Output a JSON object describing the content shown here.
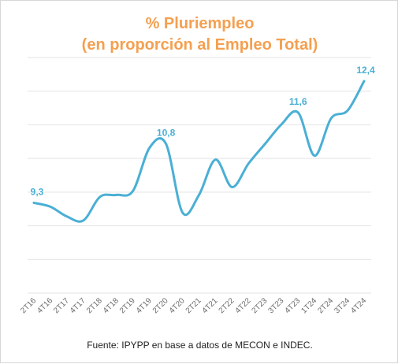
{
  "chart_data": {
    "type": "line",
    "title": "% Pluriempleo",
    "subtitle": "(en proporción al Empleo Total)",
    "source": "Fuente: IPYPP en base a datos de MECON e INDEC.",
    "xlabel": "",
    "ylabel": "",
    "ylim": [
      7.0,
      13.0
    ],
    "grid": true,
    "legend": "none",
    "line_color": "#4AAFD5",
    "label_color": "#4AAFD5",
    "title_color": "#F4A050",
    "categories": [
      "2T16",
      "4T16",
      "2T17",
      "4T17",
      "2T18",
      "4T18",
      "2T19",
      "4T19",
      "2T20",
      "4T20",
      "2T21",
      "4T21",
      "2T22",
      "4T22",
      "2T23",
      "3T23",
      "4T23",
      "1T24",
      "2T24",
      "3T24",
      "4T24"
    ],
    "series": [
      {
        "name": "",
        "values": [
          9.3,
          9.2,
          8.95,
          8.85,
          9.45,
          9.5,
          9.6,
          10.7,
          10.8,
          9.05,
          9.5,
          10.4,
          9.7,
          10.3,
          10.8,
          11.3,
          11.6,
          10.5,
          11.45,
          11.65,
          12.4
        ]
      }
    ],
    "data_labels": [
      {
        "category_index": 0,
        "text": "9,3"
      },
      {
        "category_index": 8,
        "text": "10,8"
      },
      {
        "category_index": 16,
        "text": "11,6"
      },
      {
        "category_index": 20,
        "text": "12,4"
      }
    ]
  }
}
